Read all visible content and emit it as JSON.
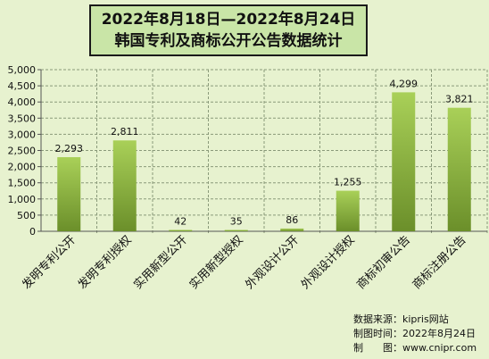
{
  "title": {
    "line1": "2022年8月18日—2022年8月24日",
    "line2": "韩国专利及商标公开公告数据统计"
  },
  "source": {
    "line1": "数据来源：kipris网站",
    "line2": "制图时间：2022年8月24日",
    "line3": "制　　图：www.cnipr.com"
  },
  "colors": {
    "background": "#e7f2cf",
    "bar_top": "#a9d058",
    "bar_bottom": "#6b8f2a",
    "grid": "#8a9a7a",
    "title_box": "#c9e5a7"
  },
  "chart_data": {
    "type": "bar",
    "categories": [
      "发明专利公开",
      "发明专利授权",
      "实用新型公开",
      "实用新型授权",
      "外观设计公开",
      "外观设计授权",
      "商标初审公告",
      "商标注册公告"
    ],
    "values": [
      2293,
      2811,
      42,
      35,
      86,
      1255,
      4299,
      3821
    ],
    "data_labels": [
      "2,293",
      "2,811",
      "42",
      "35",
      "86",
      "1,255",
      "4,299",
      "3,821"
    ],
    "y_ticks": [
      "0",
      "500",
      "1,000",
      "1,500",
      "2,000",
      "2,500",
      "3,000",
      "3,500",
      "4,000",
      "4,500",
      "5,000"
    ],
    "ylim": [
      0,
      5000
    ],
    "grid": true
  }
}
